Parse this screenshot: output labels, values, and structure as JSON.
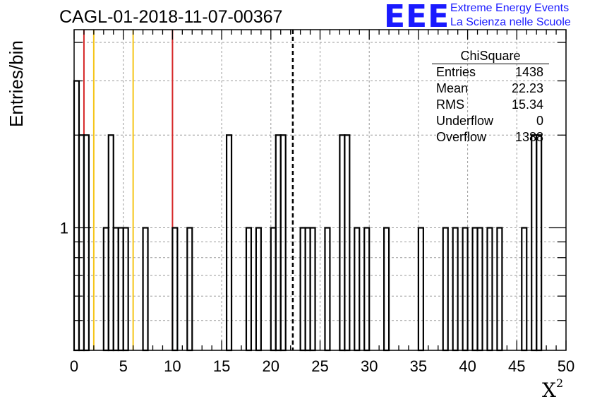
{
  "header": {
    "title": "CAGL-01-2018-11-07-00367"
  },
  "logo": {
    "mark": "EEE",
    "line1": "Extreme Energy Events",
    "line2": "La Scienza nelle Scuole"
  },
  "stats_box": {
    "title": "ChiSquare",
    "rows": [
      {
        "label": "Entries",
        "value": "1438"
      },
      {
        "label": "Mean",
        "value": "22.23"
      },
      {
        "label": "RMS",
        "value": "15.34"
      },
      {
        "label": "Underflow",
        "value": "0"
      },
      {
        "label": "Overflow",
        "value": "1388"
      }
    ]
  },
  "chart_data": {
    "type": "histogram",
    "title": "CAGL-01-2018-11-07-00367",
    "xlabel": "X",
    "xlabel_superscript": "2",
    "ylabel": "Entries/bin",
    "xlim": [
      0,
      50
    ],
    "ylim": [
      0.4,
      4.4
    ],
    "y_log_scale": true,
    "bin_width": 0.5,
    "x_ticks": [
      "0",
      "5",
      "10",
      "15",
      "20",
      "25",
      "30",
      "35",
      "40",
      "45",
      "50"
    ],
    "y_tick_labels": [
      "1"
    ],
    "grid": true,
    "bins": [
      {
        "x": 0.0,
        "y": 3
      },
      {
        "x": 0.5,
        "y": 2
      },
      {
        "x": 1.0,
        "y": 2
      },
      {
        "x": 3.0,
        "y": 1
      },
      {
        "x": 3.5,
        "y": 2
      },
      {
        "x": 4.0,
        "y": 1
      },
      {
        "x": 4.5,
        "y": 1
      },
      {
        "x": 5.0,
        "y": 1
      },
      {
        "x": 7.0,
        "y": 1
      },
      {
        "x": 10.0,
        "y": 1
      },
      {
        "x": 11.5,
        "y": 1
      },
      {
        "x": 15.5,
        "y": 2
      },
      {
        "x": 17.5,
        "y": 1
      },
      {
        "x": 18.5,
        "y": 1
      },
      {
        "x": 20.0,
        "y": 1
      },
      {
        "x": 20.5,
        "y": 2
      },
      {
        "x": 21.0,
        "y": 2
      },
      {
        "x": 23.0,
        "y": 1
      },
      {
        "x": 23.5,
        "y": 1
      },
      {
        "x": 24.0,
        "y": 1
      },
      {
        "x": 25.5,
        "y": 1
      },
      {
        "x": 27.0,
        "y": 2
      },
      {
        "x": 27.5,
        "y": 2
      },
      {
        "x": 28.5,
        "y": 1
      },
      {
        "x": 29.5,
        "y": 1
      },
      {
        "x": 31.5,
        "y": 1
      },
      {
        "x": 35.0,
        "y": 1
      },
      {
        "x": 37.5,
        "y": 1
      },
      {
        "x": 38.5,
        "y": 1
      },
      {
        "x": 39.5,
        "y": 1
      },
      {
        "x": 40.5,
        "y": 1
      },
      {
        "x": 41.0,
        "y": 1
      },
      {
        "x": 42.0,
        "y": 1
      },
      {
        "x": 43.0,
        "y": 1
      },
      {
        "x": 45.5,
        "y": 1
      },
      {
        "x": 46.5,
        "y": 2
      },
      {
        "x": 47.0,
        "y": 2
      }
    ],
    "vertical_lines": [
      {
        "x": 1.0,
        "color": "#d62728",
        "style": "solid"
      },
      {
        "x": 2.0,
        "color": "#f5c518",
        "style": "solid"
      },
      {
        "x": 6.0,
        "color": "#f5c518",
        "style": "solid"
      },
      {
        "x": 10.0,
        "color": "#d62728",
        "style": "solid"
      },
      {
        "x": 22.23,
        "color": "#000000",
        "style": "dashed"
      }
    ]
  }
}
